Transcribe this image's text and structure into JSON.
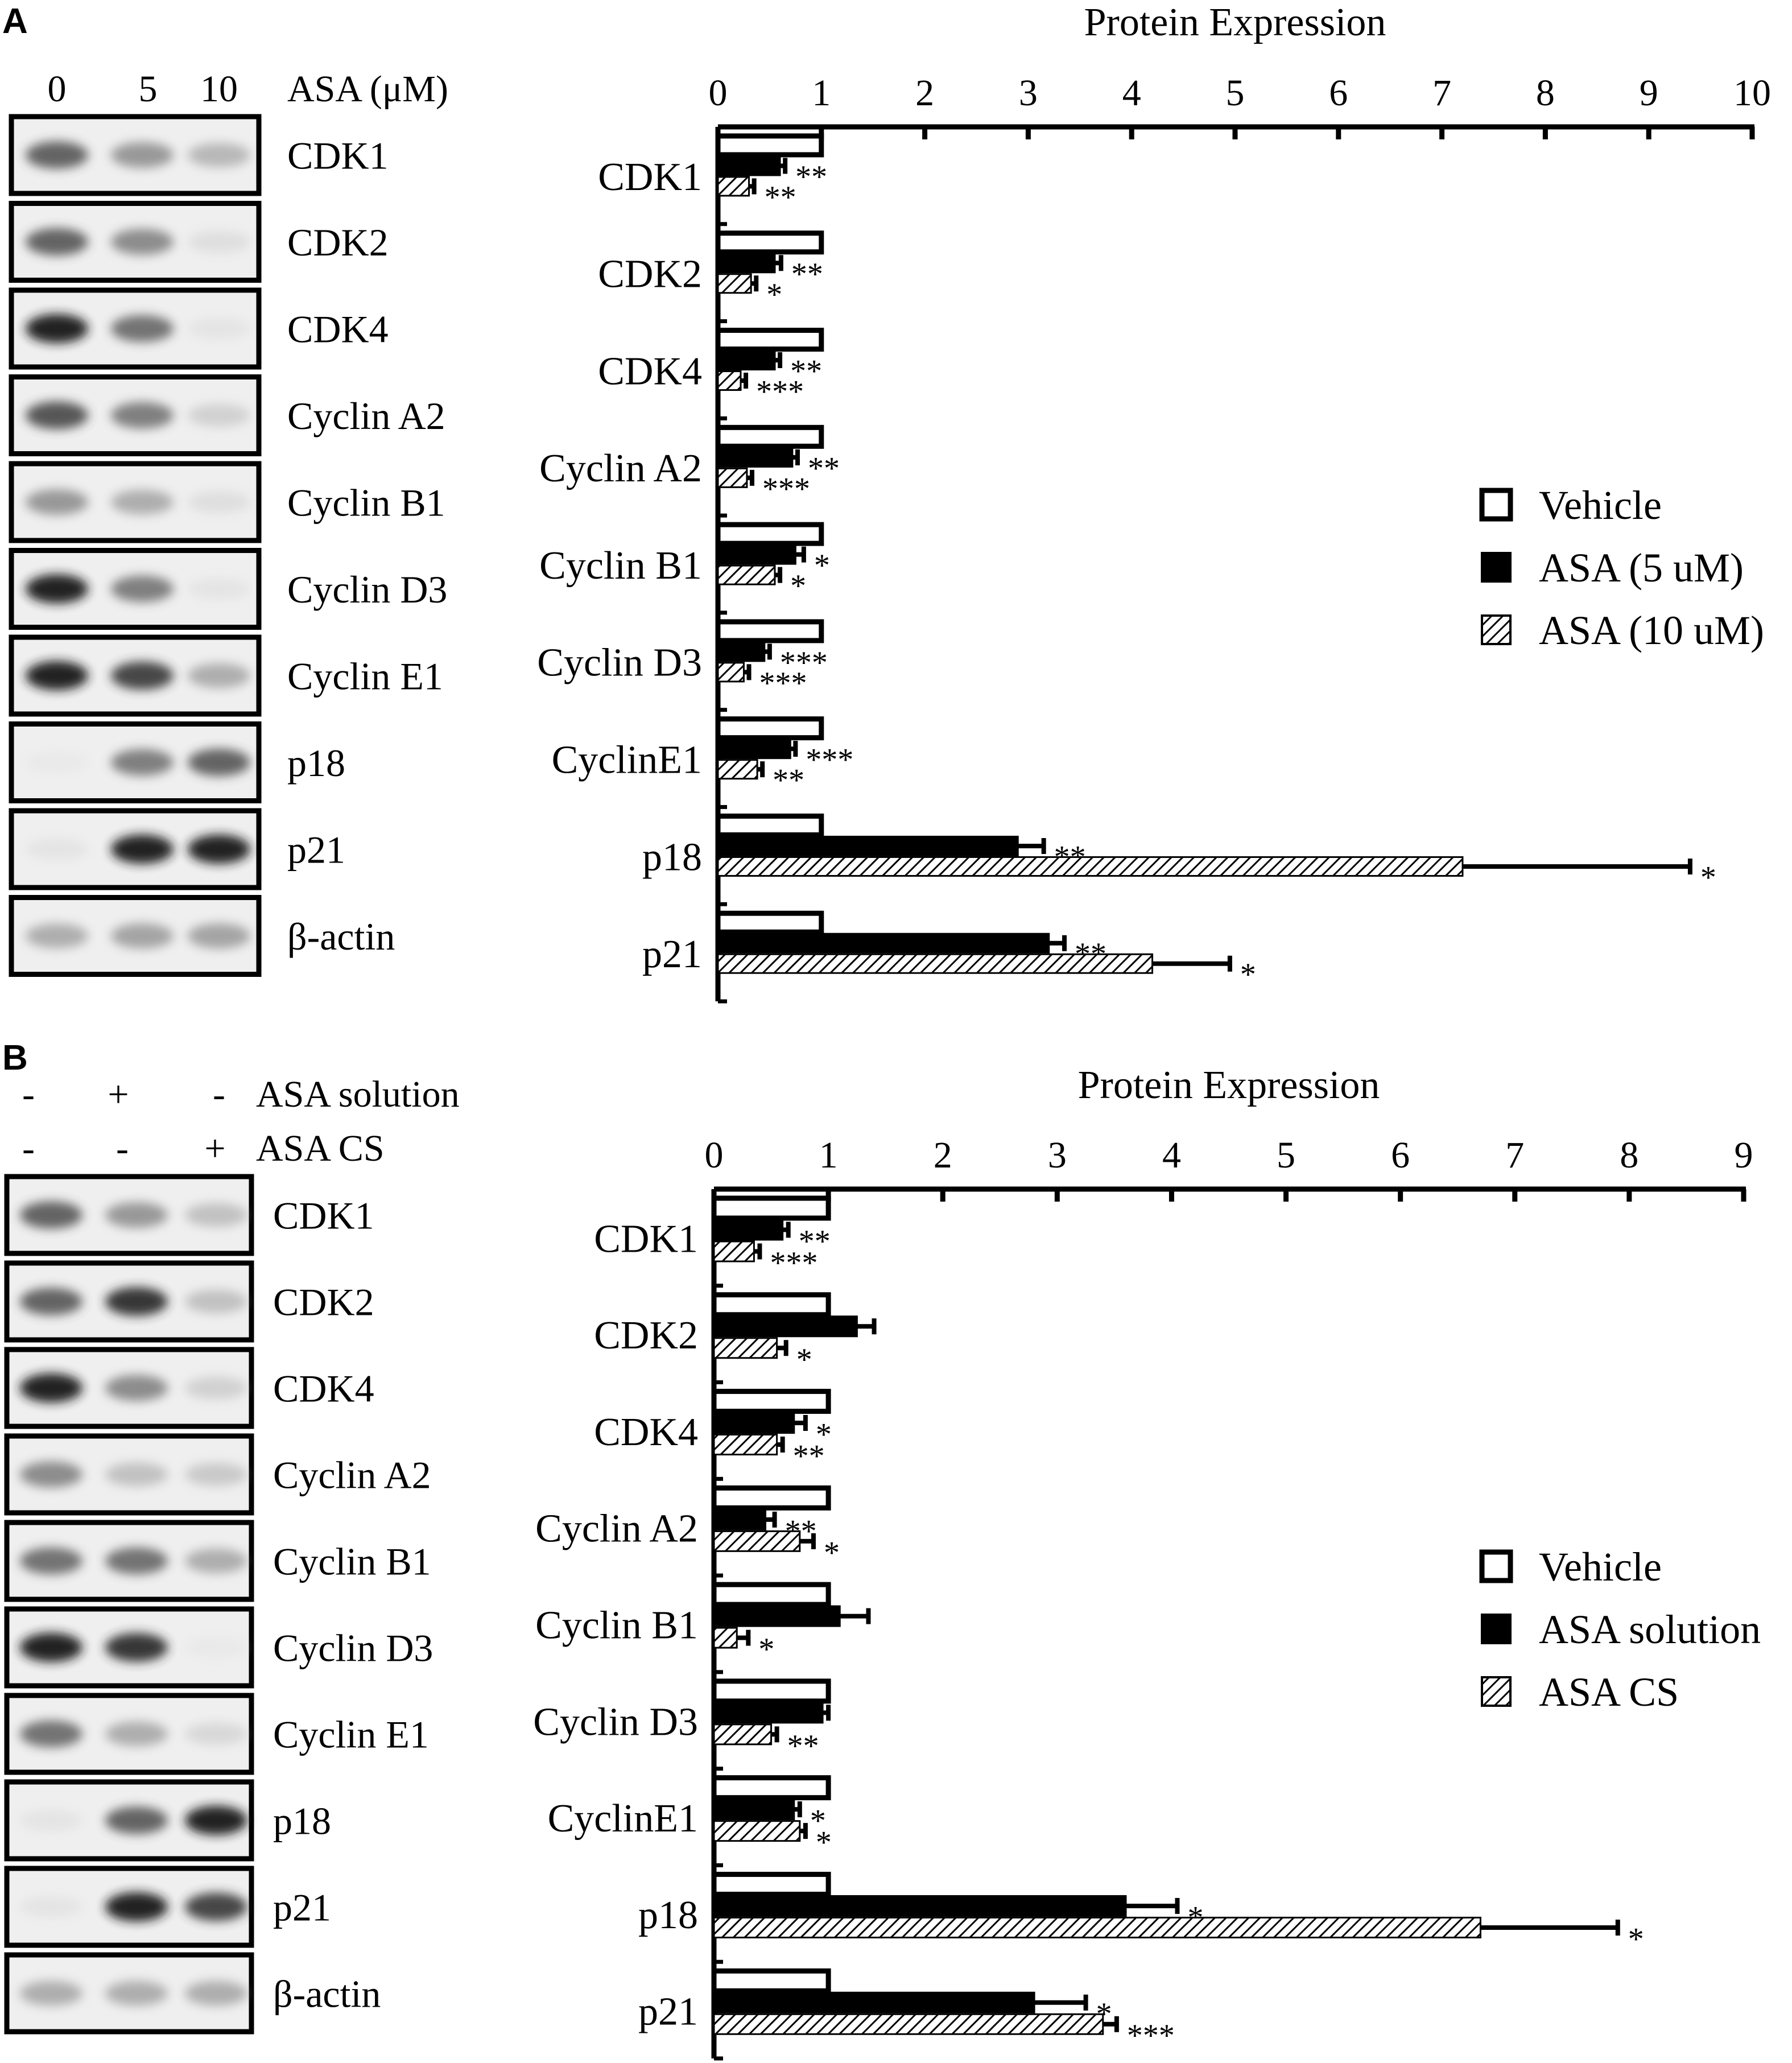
{
  "colors": {
    "ink": "#000000",
    "paper": "#ffffff",
    "blot_band": "#1a1a1a",
    "blot_bg": "#efefef"
  },
  "legend_swatches": [
    "open-box",
    "solid-box",
    "hatched-box"
  ],
  "chart_data": [
    {
      "panel": "A",
      "type": "bar",
      "orientation": "horizontal",
      "title": "Protein Expression",
      "xlabel": "",
      "ylabel": "",
      "xlim": [
        0,
        10
      ],
      "ticks": [
        0,
        1,
        2,
        3,
        4,
        5,
        6,
        7,
        8,
        9,
        10
      ],
      "grid": false,
      "legend_position": "right-middle",
      "categories": [
        "CDK1",
        "CDK2",
        "CDK4",
        "Cyclin A2",
        "Cyclin B1",
        "Cyclin D3",
        "CyclinE1",
        "p18",
        "p21"
      ],
      "series": [
        {
          "name": "Vehicle",
          "style": "open",
          "values": [
            1,
            1,
            1,
            1,
            1,
            1,
            1,
            1,
            1
          ],
          "errors": [
            0,
            0,
            0,
            0,
            0,
            0,
            0,
            0,
            0
          ],
          "sig": [
            "",
            "",
            "",
            "",
            "",
            "",
            "",
            "",
            ""
          ]
        },
        {
          "name": "ASA (5 uM)",
          "style": "solid",
          "values": [
            0.6,
            0.55,
            0.55,
            0.72,
            0.75,
            0.45,
            0.7,
            2.9,
            3.2
          ],
          "errors": [
            0.05,
            0.06,
            0.05,
            0.05,
            0.08,
            0.05,
            0.05,
            0.25,
            0.15
          ],
          "sig": [
            "**",
            "**",
            "**",
            "**",
            "*",
            "***",
            "***",
            "**",
            "**"
          ]
        },
        {
          "name": "ASA (10 uM)",
          "style": "hatched",
          "values": [
            0.3,
            0.32,
            0.22,
            0.28,
            0.55,
            0.25,
            0.38,
            7.2,
            4.2
          ],
          "errors": [
            0.05,
            0.05,
            0.05,
            0.05,
            0.05,
            0.05,
            0.05,
            2.2,
            0.75
          ],
          "sig": [
            "**",
            "*",
            "***",
            "***",
            "*",
            "***",
            "**",
            "*",
            "*"
          ]
        }
      ],
      "blot": {
        "lane_headers": [
          "0",
          "5",
          "10"
        ],
        "lane_unit": "ASA (μM)",
        "rows": [
          {
            "label": "CDK1",
            "intensity": [
              0.75,
              0.55,
              0.4
            ]
          },
          {
            "label": "CDK2",
            "intensity": [
              0.75,
              0.6,
              0.15
            ]
          },
          {
            "label": "CDK4",
            "intensity": [
              0.95,
              0.7,
              0.1
            ]
          },
          {
            "label": "Cyclin A2",
            "intensity": [
              0.8,
              0.65,
              0.25
            ]
          },
          {
            "label": "Cyclin B1",
            "intensity": [
              0.55,
              0.45,
              0.15
            ]
          },
          {
            "label": "Cyclin D3",
            "intensity": [
              0.95,
              0.65,
              0.1
            ]
          },
          {
            "label": "Cyclin E1",
            "intensity": [
              0.95,
              0.85,
              0.45
            ]
          },
          {
            "label": "p18",
            "intensity": [
              0.05,
              0.65,
              0.75
            ]
          },
          {
            "label": "p21",
            "intensity": [
              0.1,
              0.95,
              0.95
            ]
          },
          {
            "label": "β-actin",
            "intensity": [
              0.45,
              0.5,
              0.5
            ]
          }
        ]
      }
    },
    {
      "panel": "B",
      "type": "bar",
      "orientation": "horizontal",
      "title": "Protein Expression",
      "xlabel": "",
      "ylabel": "",
      "xlim": [
        0,
        9
      ],
      "ticks": [
        0,
        1,
        2,
        3,
        4,
        5,
        6,
        7,
        8,
        9
      ],
      "grid": false,
      "legend_position": "right-bottom",
      "categories": [
        "CDK1",
        "CDK2",
        "CDK4",
        "Cyclin A2",
        "Cyclin B1",
        "Cyclin D3",
        "CyclinE1",
        "p18",
        "p21"
      ],
      "series": [
        {
          "name": "Vehicle",
          "style": "open",
          "values": [
            1,
            1,
            1,
            1,
            1,
            1,
            1,
            1,
            1
          ],
          "errors": [
            0,
            0,
            0,
            0,
            0,
            0,
            0,
            0,
            0
          ],
          "sig": [
            "",
            "",
            "",
            "",
            "",
            "",
            "",
            "",
            ""
          ]
        },
        {
          "name": "ASA solution",
          "style": "solid",
          "values": [
            0.6,
            1.25,
            0.7,
            0.45,
            1.1,
            0.95,
            0.7,
            3.6,
            2.8
          ],
          "errors": [
            0.05,
            0.15,
            0.1,
            0.08,
            0.25,
            0.05,
            0.05,
            0.45,
            0.45
          ],
          "sig": [
            "**",
            "",
            "*",
            "**",
            "",
            "",
            "*",
            "*",
            "*"
          ]
        },
        {
          "name": "ASA CS",
          "style": "hatched",
          "values": [
            0.35,
            0.55,
            0.55,
            0.75,
            0.2,
            0.5,
            0.75,
            6.7,
            3.4
          ],
          "errors": [
            0.05,
            0.08,
            0.05,
            0.12,
            0.1,
            0.05,
            0.05,
            1.2,
            0.12
          ],
          "sig": [
            "***",
            "*",
            "**",
            "*",
            "*",
            "**",
            "*",
            "*",
            "***"
          ]
        }
      ],
      "blot": {
        "lane_headers": [],
        "conditions": [
          {
            "label": "ASA solution",
            "signs": [
              "-",
              "+",
              "-"
            ]
          },
          {
            "label": "ASA CS",
            "signs": [
              "-",
              "-",
              "+"
            ]
          }
        ],
        "rows": [
          {
            "label": "CDK1",
            "intensity": [
              0.75,
              0.55,
              0.35
            ]
          },
          {
            "label": "CDK2",
            "intensity": [
              0.75,
              0.9,
              0.35
            ]
          },
          {
            "label": "CDK4",
            "intensity": [
              0.95,
              0.6,
              0.25
            ]
          },
          {
            "label": "Cyclin A2",
            "intensity": [
              0.6,
              0.35,
              0.3
            ]
          },
          {
            "label": "Cyclin B1",
            "intensity": [
              0.7,
              0.7,
              0.45
            ]
          },
          {
            "label": "Cyclin D3",
            "intensity": [
              0.95,
              0.9,
              0.05
            ]
          },
          {
            "label": "Cyclin E1",
            "intensity": [
              0.7,
              0.45,
              0.2
            ]
          },
          {
            "label": "p18",
            "intensity": [
              0.1,
              0.75,
              0.95
            ]
          },
          {
            "label": "p21",
            "intensity": [
              0.1,
              0.95,
              0.85
            ]
          },
          {
            "label": "β-actin",
            "intensity": [
              0.45,
              0.45,
              0.45
            ]
          }
        ]
      }
    }
  ]
}
